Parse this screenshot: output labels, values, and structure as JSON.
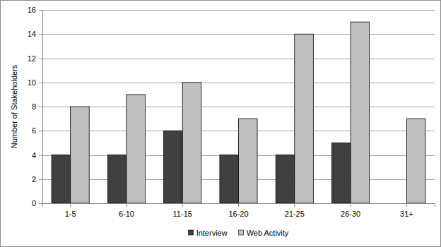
{
  "chart_data": {
    "type": "bar",
    "y_label": "Number of Stakeholders",
    "categories": [
      "1-5",
      "6-10",
      "11-15",
      "16-20",
      "21-25",
      "26-30",
      "31+"
    ],
    "series": [
      {
        "name": "Interview",
        "color": "#404040",
        "values": [
          4,
          4,
          6,
          4,
          4,
          5,
          0
        ]
      },
      {
        "name": "Web Activity",
        "color": "#bfbfbf",
        "values": [
          8,
          9,
          10,
          7,
          14,
          15,
          7
        ]
      }
    ],
    "ylim": [
      0,
      16
    ],
    "yticks": [
      0,
      2,
      4,
      6,
      8,
      10,
      12,
      14,
      16
    ],
    "grid": true,
    "legend": "bottom"
  }
}
